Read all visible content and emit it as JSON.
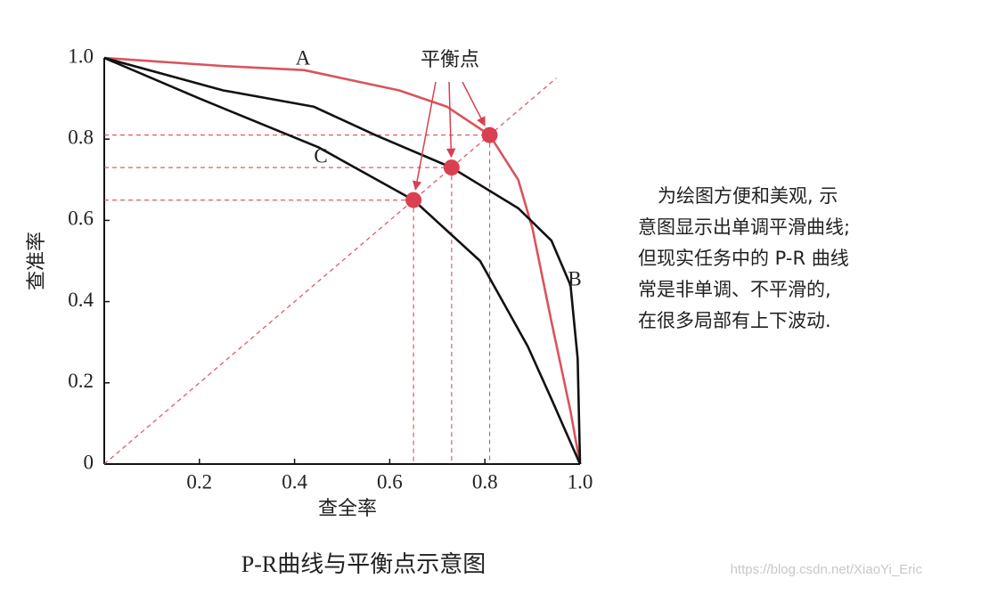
{
  "chart_data": {
    "type": "line",
    "title": "P-R曲线与平衡点示意图",
    "x_label": "查全率",
    "y_label": "查准率",
    "xlim": [
      0,
      1
    ],
    "ylim": [
      0,
      1
    ],
    "xticks": [
      0.2,
      0.4,
      0.6,
      0.8,
      {
        "value": 1,
        "label": "1.0"
      }
    ],
    "yticks": [
      0,
      0.2,
      0.4,
      0.6,
      0.8,
      {
        "value": 1,
        "label": "1.0"
      }
    ],
    "series": [
      {
        "name": "A",
        "color": "#d9545c",
        "x": [
          0,
          0.25,
          0.42,
          0.62,
          0.72,
          0.81,
          0.87,
          0.9,
          0.94,
          0.98,
          1
        ],
        "values": [
          1,
          0.98,
          0.97,
          0.92,
          0.88,
          0.81,
          0.7,
          0.58,
          0.35,
          0.13,
          0
        ]
      },
      {
        "name": "B",
        "color": "#111111",
        "x": [
          0,
          0.25,
          0.44,
          0.57,
          0.73,
          0.87,
          0.94,
          0.98,
          0.995,
          1
        ],
        "values": [
          1,
          0.92,
          0.88,
          0.81,
          0.73,
          0.63,
          0.55,
          0.44,
          0.26,
          0
        ]
      },
      {
        "name": "C",
        "color": "#111111",
        "x": [
          0,
          0.2,
          0.45,
          0.65,
          0.79,
          0.89,
          0.94,
          1
        ],
        "values": [
          1,
          0.9,
          0.78,
          0.65,
          0.5,
          0.29,
          0.16,
          0
        ]
      }
    ],
    "break_even": {
      "label": "平衡点",
      "color": "#d9404f",
      "x": [
        0.65,
        0.73,
        0.81
      ],
      "values": [
        0.65,
        0.73,
        0.81
      ]
    },
    "note": [
      "为绘图方便和美观, 示",
      "意图显示出单调平滑曲线;",
      "但现实任务中的 P-R 曲线",
      "常是非单调、不平滑的,",
      "在很多局部有上下波动."
    ],
    "watermark": "https://blog.csdn.net/XiaoYi_Eric"
  }
}
